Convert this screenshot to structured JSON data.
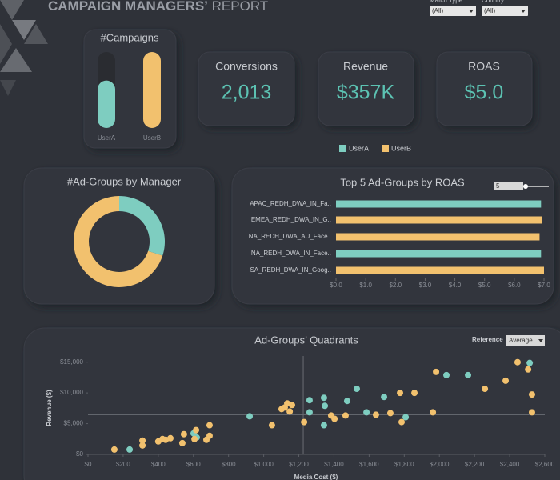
{
  "header": {
    "title_bold": "CAMPAIGN MANAGERS’",
    "title_light": "REPORT"
  },
  "filters": [
    {
      "label": "Match Type",
      "value": "(All)"
    },
    {
      "label": "Country",
      "value": "(All)"
    }
  ],
  "kpis": [
    {
      "label": "Conversions",
      "value": "2,013"
    },
    {
      "label": "Revenue",
      "value": "$357K"
    },
    {
      "label": "ROAS",
      "value": "$5.0"
    }
  ],
  "legend": {
    "items": [
      {
        "name": "UserA",
        "color": "#7ecdc0"
      },
      {
        "name": "UserB",
        "color": "#f2c16e"
      }
    ]
  },
  "controls": {
    "top_n": 5,
    "reference_label": "Reference",
    "reference_value": "Average"
  },
  "chart_data": [
    {
      "type": "pill",
      "title": "#Campaigns",
      "categories": [
        "UserA",
        "UserB"
      ],
      "values": [
        5,
        8
      ],
      "colors": [
        "#7ecdc0",
        "#f2c16e"
      ],
      "ylim": [
        0,
        8
      ]
    },
    {
      "type": "donut",
      "title": "#Ad-Groups by Manager",
      "categories": [
        "UserA",
        "UserB"
      ],
      "values": [
        30,
        70
      ],
      "colors": [
        "#7ecdc0",
        "#f2c16e"
      ]
    },
    {
      "type": "hbar",
      "title": "Top 5 Ad-Groups by ROAS",
      "categories": [
        "APAC_REDH_DWA_IN_Fa..",
        "EMEA_REDH_DWA_IN_G..",
        "NA_REDH_DWA_AU_Face..",
        "NA_REDH_DWA_IN_Face..",
        "SA_REDH_DWA_IN_Goog.."
      ],
      "values": [
        6.9,
        6.92,
        6.85,
        6.9,
        7.0
      ],
      "colors": [
        "#7ecdc0",
        "#f2c16e",
        "#f2c16e",
        "#7ecdc0",
        "#f2c16e"
      ],
      "xlim": [
        0,
        7
      ],
      "xticks": [
        {
          "value": 0,
          "label": "$0.0"
        },
        {
          "value": 1,
          "label": "$1.0"
        },
        {
          "value": 2,
          "label": "$2.0"
        },
        {
          "value": 3,
          "label": "$3.0"
        },
        {
          "value": 4,
          "label": "$4.0"
        },
        {
          "value": 5,
          "label": "$5.0"
        },
        {
          "value": 6,
          "label": "$6.0"
        },
        {
          "value": 7,
          "label": "$7.0"
        }
      ]
    },
    {
      "type": "scatter",
      "title": "Ad-Groups’ Quadrants",
      "xlabel": "Media Cost ($)",
      "ylabel": "Revenue ($)",
      "xlim": [
        0,
        2600
      ],
      "ylim": [
        0,
        16000
      ],
      "xticks": [
        {
          "value": 0,
          "label": "$0"
        },
        {
          "value": 200,
          "label": "$200"
        },
        {
          "value": 400,
          "label": "$400"
        },
        {
          "value": 600,
          "label": "$600"
        },
        {
          "value": 800,
          "label": "$800"
        },
        {
          "value": 1000,
          "label": "$1,000"
        },
        {
          "value": 1200,
          "label": "$1,200"
        },
        {
          "value": 1400,
          "label": "$1,400"
        },
        {
          "value": 1600,
          "label": "$1,600"
        },
        {
          "value": 1800,
          "label": "$1,800"
        },
        {
          "value": 2000,
          "label": "$2,000"
        },
        {
          "value": 2200,
          "label": "$2,200"
        },
        {
          "value": 2400,
          "label": "$2,400"
        },
        {
          "value": 2600,
          "label": "$2,600"
        }
      ],
      "yticks": [
        {
          "value": 0,
          "label": "$0"
        },
        {
          "value": 5000,
          "label": "$5,000"
        },
        {
          "value": 10000,
          "label": "$10,000"
        },
        {
          "value": 15000,
          "label": "$15,000"
        }
      ],
      "reference_lines": {
        "x": 1225,
        "y": 6450
      },
      "series": [
        {
          "name": "UserA",
          "color": "#7ecdc0",
          "x": [
            237,
            601,
            619,
            920,
            1261,
            1261,
            1343,
            1343,
            1348,
            1475,
            1530,
            1585,
            1685,
            1808,
            2040,
            2163,
            2514
          ],
          "y": [
            790,
            3420,
            2760,
            6190,
            8820,
            6840,
            4740,
            9210,
            7900,
            8690,
            10660,
            6840,
            9340,
            6050,
            12900,
            12900,
            14870
          ]
        },
        {
          "name": "UserB",
          "color": "#f2c16e",
          "x": [
            150,
            310,
            310,
            400,
            424,
            442,
            469,
            537,
            546,
            606,
            615,
            674,
            692,
            692,
            1047,
            1102,
            1120,
            1134,
            1148,
            1161,
            1230,
            1384,
            1403,
            1466,
            1639,
            1721,
            1776,
            1785,
            1858,
            1963,
            1981,
            2259,
            2377,
            2527,
            2527,
            2505,
            2445
          ],
          "y": [
            790,
            1450,
            2240,
            2110,
            2500,
            2370,
            2630,
            1840,
            3290,
            2500,
            3950,
            2370,
            3030,
            4740,
            4740,
            7370,
            7630,
            8290,
            6970,
            8030,
            5260,
            6320,
            5790,
            6320,
            6450,
            6710,
            10000,
            5260,
            10000,
            6840,
            13420,
            10660,
            11980,
            6840,
            9740,
            13820,
            15000
          ]
        }
      ]
    }
  ]
}
